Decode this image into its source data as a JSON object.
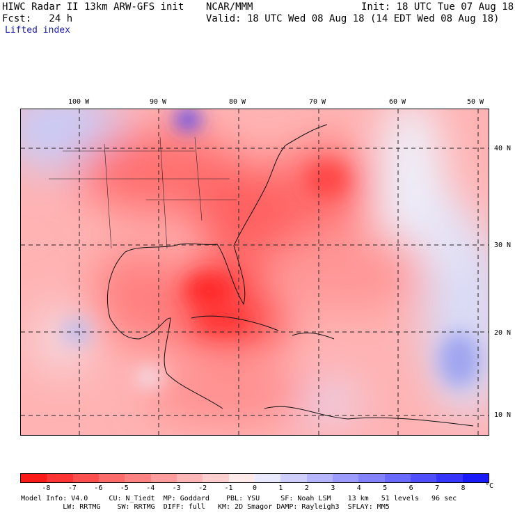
{
  "header": {
    "title": "HIWC Radar II 13km ARW-GFS init",
    "org": "NCAR/MMM",
    "init": "Init: 18 UTC Tue 07 Aug 18",
    "fcst": "Fcst:   24 h",
    "valid": "Valid: 18 UTC Wed 08 Aug 18 (14 EDT Wed 08 Aug 18)",
    "field": "Lifted index"
  },
  "map": {
    "lon_labels": [
      "100 W",
      "90 W",
      "80 W",
      "70 W",
      "60 W",
      "50 W"
    ],
    "lat_labels": [
      "40 N",
      "30 N",
      "20 N",
      "10 N"
    ]
  },
  "colorbar": {
    "unit": "°C",
    "labels": [
      "-8",
      "-7",
      "-6",
      "-5",
      "-4",
      "-3",
      "-2",
      "-1",
      "0",
      "1",
      "2",
      "3",
      "4",
      "5",
      "6",
      "7",
      "8"
    ],
    "colors": [
      "#ff1a1a",
      "#ff3535",
      "#ff4f4f",
      "#ff6a6a",
      "#ff8383",
      "#ff9c9c",
      "#ffb6b6",
      "#ffcfcf",
      "#ffe9e9",
      "#e9e9ff",
      "#cfcfff",
      "#b6b6ff",
      "#9c9cff",
      "#8383ff",
      "#6a6aff",
      "#4f4fff",
      "#3535ff",
      "#1a1aff"
    ]
  },
  "footer": {
    "line1": "Model Info: V4.0     CU: N_Tiedt  MP: Goddard    PBL: YSU     SF: Noah LSM    13 km   51 levels   96 sec",
    "line2": "          LW: RRTMG    SW: RRTMG  DIFF: full   KM: 2D Smagor DAMP: Rayleigh3  SFLAY: MM5"
  }
}
